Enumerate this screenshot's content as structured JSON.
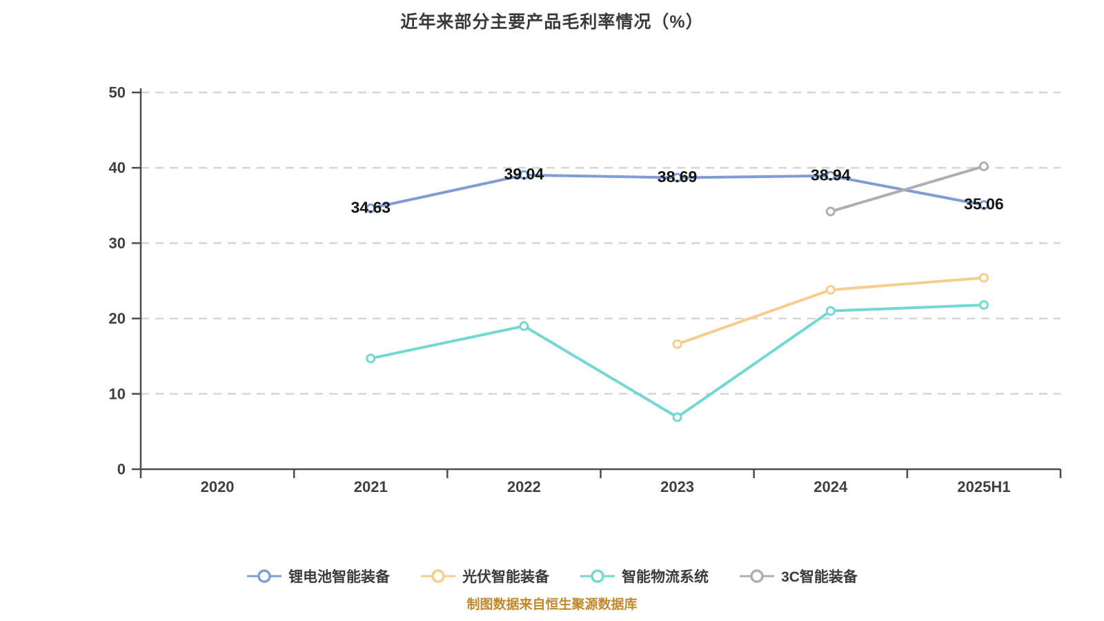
{
  "title": "近年来部分主要产品毛利率情况（%）",
  "caption": "制图数据来自恒生聚源数据库",
  "colors": {
    "background": "#ffffff",
    "axis": "#4a4a4a",
    "grid": "#d5d5d5",
    "tick_text": "#3f3f3f",
    "title_text": "#3a3a3a",
    "data_label": "#141414",
    "legend_text": "#3b3b3b",
    "caption_text": "#c0882a",
    "point_fill": "#ffffff"
  },
  "chart_data": {
    "type": "line",
    "title": "近年来部分主要产品毛利率情况（%）",
    "categories": [
      "2020",
      "2021",
      "2022",
      "2023",
      "2024",
      "2025H1"
    ],
    "series": [
      {
        "id": "li-battery-equipment",
        "name": "锂电池智能装备",
        "color": "#7f9dd4",
        "values": [
          null,
          34.63,
          39.04,
          38.69,
          38.94,
          35.06
        ],
        "point_labels": [
          null,
          "34.63",
          "39.04",
          "38.69",
          "38.94",
          "35.06"
        ]
      },
      {
        "id": "pv-equipment",
        "name": "光伏智能装备",
        "color": "#f6cd8b",
        "values": [
          null,
          null,
          null,
          16.6,
          23.8,
          25.4
        ],
        "point_labels": null
      },
      {
        "id": "logistics-system",
        "name": "智能物流系统",
        "color": "#71d8d2",
        "values": [
          null,
          14.7,
          19.0,
          6.9,
          21.0,
          21.8
        ],
        "point_labels": null
      },
      {
        "id": "3c-equipment",
        "name": "3C智能装备",
        "color": "#b1afad",
        "values": [
          null,
          null,
          null,
          null,
          34.2,
          40.2
        ],
        "point_labels": null
      }
    ],
    "xlabel": "",
    "ylabel": "",
    "ylim": [
      0,
      50
    ],
    "y_ticks": [
      0,
      10,
      20,
      30,
      40,
      50
    ],
    "grid": "horizontal-dashed",
    "legend_position": "bottom"
  }
}
